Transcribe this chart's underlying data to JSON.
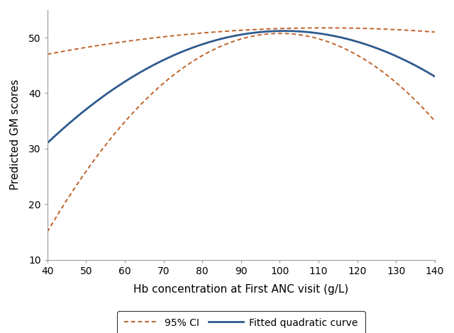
{
  "xlim": [
    40,
    140
  ],
  "ylim": [
    10,
    55
  ],
  "xticks": [
    40,
    50,
    60,
    70,
    80,
    90,
    100,
    110,
    120,
    130,
    140
  ],
  "yticks": [
    10,
    20,
    30,
    40,
    50
  ],
  "xlabel": "Hb concentration at First ANC visit (g/L)",
  "ylabel": "Predicted GM scores",
  "fitted_color": "#2e5a8e",
  "ci_color": "#c0622a",
  "fitted_lw": 2.0,
  "ci_lw": 1.4,
  "legend_labels": [
    "95% CI",
    "Fitted quadratic curve"
  ],
  "spine_color": "#999999",
  "tick_color": "#999999",
  "fitted_pts": [
    [
      40,
      31.0
    ],
    [
      70,
      44.0
    ],
    [
      95,
      51.0
    ],
    [
      110,
      51.0
    ],
    [
      130,
      47.5
    ],
    [
      140,
      43.0
    ]
  ],
  "upper_ci_pts": [
    [
      40,
      47.0
    ],
    [
      60,
      50.0
    ],
    [
      90,
      51.5
    ],
    [
      110,
      51.5
    ],
    [
      130,
      51.0
    ],
    [
      140,
      51.0
    ]
  ],
  "lower_ci_pts": [
    [
      40,
      15.0
    ],
    [
      60,
      27.0
    ],
    [
      80,
      41.0
    ],
    [
      95,
      50.5
    ],
    [
      110,
      50.0
    ],
    [
      125,
      44.0
    ],
    [
      140,
      35.0
    ]
  ]
}
